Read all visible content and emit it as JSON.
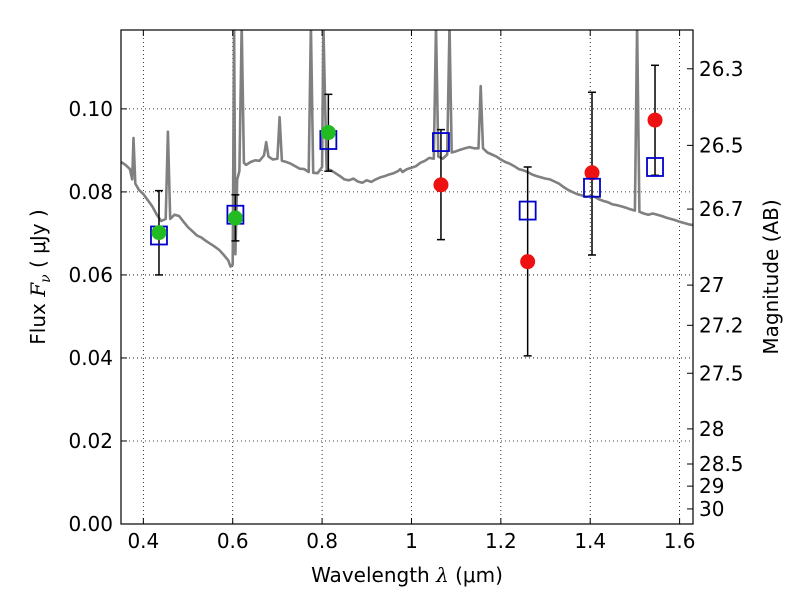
{
  "chart_data": {
    "type": "scatter",
    "xlabel": {
      "prefix": "Wavelength  ",
      "math": "λ",
      "suffix": " (μm)"
    },
    "ylabel": {
      "prefix": "Flux  ",
      "math": "F",
      "sub": "ν",
      "suffix": "  ( μJy )"
    },
    "y2label": "Magnitude (AB)",
    "xlim": [
      0.35,
      1.63
    ],
    "ylim": [
      0.0,
      0.119
    ],
    "grid": true,
    "x_ticks": [
      {
        "v": 0.4,
        "label": "0.4"
      },
      {
        "v": 0.6,
        "label": "0.6"
      },
      {
        "v": 0.8,
        "label": "0.8"
      },
      {
        "v": 1.0,
        "label": "1"
      },
      {
        "v": 1.2,
        "label": "1.2"
      },
      {
        "v": 1.4,
        "label": "1.4"
      },
      {
        "v": 1.6,
        "label": "1.6"
      }
    ],
    "y_ticks": [
      {
        "v": 0.0,
        "label": "0.00"
      },
      {
        "v": 0.02,
        "label": "0.02"
      },
      {
        "v": 0.04,
        "label": "0.04"
      },
      {
        "v": 0.06,
        "label": "0.06"
      },
      {
        "v": 0.08,
        "label": "0.08"
      },
      {
        "v": 0.1,
        "label": "0.10"
      }
    ],
    "mag_ticks": [
      {
        "v": 26.3,
        "label": "26.3"
      },
      {
        "v": 26.5,
        "label": "26.5"
      },
      {
        "v": 26.7,
        "label": "26.7"
      },
      {
        "v": 27.0,
        "label": "27"
      },
      {
        "v": 27.2,
        "label": "27.2"
      },
      {
        "v": 27.5,
        "label": "27.5"
      },
      {
        "v": 28.0,
        "label": "28"
      },
      {
        "v": 28.5,
        "label": "28.5"
      },
      {
        "v": 29.0,
        "label": "29"
      },
      {
        "v": 30.0,
        "label": "30"
      }
    ],
    "colors": {
      "model": "#808080",
      "model_points": "#0000cc",
      "detections": "#22bb22",
      "measurements": "#ee1111",
      "errorbars": "#000000"
    },
    "model_points": [
      {
        "x": 0.435,
        "y": 0.0695
      },
      {
        "x": 0.606,
        "y": 0.0745
      },
      {
        "x": 0.814,
        "y": 0.0925
      },
      {
        "x": 1.066,
        "y": 0.092
      },
      {
        "x": 1.26,
        "y": 0.0755
      },
      {
        "x": 1.404,
        "y": 0.081
      },
      {
        "x": 1.545,
        "y": 0.086
      }
    ],
    "observed_green": [
      {
        "x": 0.435,
        "y": 0.0702,
        "err_lo": 0.06,
        "err_hi": 0.0803
      },
      {
        "x": 0.606,
        "y": 0.0737,
        "err_lo": 0.0682,
        "err_hi": 0.0793
      },
      {
        "x": 0.814,
        "y": 0.0943,
        "err_lo": 0.085,
        "err_hi": 0.1035
      }
    ],
    "observed_red": [
      {
        "x": 1.066,
        "y": 0.0817,
        "err_lo": 0.0685,
        "err_hi": 0.095
      },
      {
        "x": 1.26,
        "y": 0.0632,
        "err_lo": 0.0405,
        "err_hi": 0.086
      },
      {
        "x": 1.404,
        "y": 0.0846,
        "err_lo": 0.0648,
        "err_hi": 0.104
      },
      {
        "x": 1.545,
        "y": 0.0973,
        "err_lo": 0.084,
        "err_hi": 0.1105
      }
    ],
    "model_spectrum": [
      [
        0.35,
        0.0872
      ],
      [
        0.36,
        0.0865
      ],
      [
        0.37,
        0.0855
      ],
      [
        0.375,
        0.083
      ],
      [
        0.378,
        0.093
      ],
      [
        0.382,
        0.082
      ],
      [
        0.39,
        0.0805
      ],
      [
        0.4,
        0.0795
      ],
      [
        0.41,
        0.078
      ],
      [
        0.42,
        0.0765
      ],
      [
        0.43,
        0.0745
      ],
      [
        0.44,
        0.073
      ],
      [
        0.45,
        0.0735
      ],
      [
        0.455,
        0.0945
      ],
      [
        0.46,
        0.0735
      ],
      [
        0.47,
        0.0745
      ],
      [
        0.48,
        0.0742
      ],
      [
        0.49,
        0.0728
      ],
      [
        0.5,
        0.0715
      ],
      [
        0.51,
        0.0705
      ],
      [
        0.52,
        0.0695
      ],
      [
        0.53,
        0.069
      ],
      [
        0.54,
        0.0682
      ],
      [
        0.55,
        0.0675
      ],
      [
        0.56,
        0.0668
      ],
      [
        0.57,
        0.066
      ],
      [
        0.58,
        0.0648
      ],
      [
        0.59,
        0.0635
      ],
      [
        0.595,
        0.062
      ],
      [
        0.6,
        0.0625
      ],
      [
        0.603,
        0.12
      ],
      [
        0.606,
        0.065
      ],
      [
        0.61,
        0.083
      ],
      [
        0.615,
        0.085
      ],
      [
        0.62,
        0.12
      ],
      [
        0.625,
        0.087
      ],
      [
        0.63,
        0.0865
      ],
      [
        0.64,
        0.0872
      ],
      [
        0.65,
        0.0876
      ],
      [
        0.66,
        0.0875
      ],
      [
        0.67,
        0.0888
      ],
      [
        0.675,
        0.092
      ],
      [
        0.68,
        0.0885
      ],
      [
        0.69,
        0.0878
      ],
      [
        0.7,
        0.088
      ],
      [
        0.705,
        0.098
      ],
      [
        0.71,
        0.0875
      ],
      [
        0.72,
        0.0872
      ],
      [
        0.73,
        0.0868
      ],
      [
        0.74,
        0.0862
      ],
      [
        0.75,
        0.0856
      ],
      [
        0.76,
        0.0855
      ],
      [
        0.77,
        0.0848
      ],
      [
        0.775,
        0.12
      ],
      [
        0.78,
        0.0846
      ],
      [
        0.79,
        0.0845
      ],
      [
        0.8,
        0.086
      ],
      [
        0.803,
        0.12
      ],
      [
        0.81,
        0.0855
      ],
      [
        0.82,
        0.0852
      ],
      [
        0.83,
        0.0845
      ],
      [
        0.84,
        0.0838
      ],
      [
        0.85,
        0.083
      ],
      [
        0.86,
        0.0828
      ],
      [
        0.87,
        0.0832
      ],
      [
        0.88,
        0.0825
      ],
      [
        0.89,
        0.0822
      ],
      [
        0.9,
        0.0828
      ],
      [
        0.91,
        0.0824
      ],
      [
        0.92,
        0.083
      ],
      [
        0.93,
        0.0835
      ],
      [
        0.94,
        0.0838
      ],
      [
        0.95,
        0.0842
      ],
      [
        0.96,
        0.0845
      ],
      [
        0.97,
        0.085
      ],
      [
        0.975,
        0.0855
      ],
      [
        0.98,
        0.0848
      ],
      [
        0.99,
        0.0855
      ],
      [
        1.0,
        0.0858
      ],
      [
        1.01,
        0.0862
      ],
      [
        1.02,
        0.087
      ],
      [
        1.03,
        0.0875
      ],
      [
        1.04,
        0.0882
      ],
      [
        1.05,
        0.088
      ],
      [
        1.055,
        0.12
      ],
      [
        1.06,
        0.0885
      ],
      [
        1.07,
        0.088
      ],
      [
        1.08,
        0.089
      ],
      [
        1.085,
        0.12
      ],
      [
        1.09,
        0.0895
      ],
      [
        1.1,
        0.0898
      ],
      [
        1.11,
        0.0902
      ],
      [
        1.12,
        0.0905
      ],
      [
        1.13,
        0.0908
      ],
      [
        1.14,
        0.0905
      ],
      [
        1.15,
        0.0905
      ],
      [
        1.155,
        0.1055
      ],
      [
        1.16,
        0.0905
      ],
      [
        1.17,
        0.0895
      ],
      [
        1.18,
        0.089
      ],
      [
        1.19,
        0.0885
      ],
      [
        1.2,
        0.0878
      ],
      [
        1.21,
        0.0872
      ],
      [
        1.22,
        0.0868
      ],
      [
        1.23,
        0.0862
      ],
      [
        1.24,
        0.0855
      ],
      [
        1.25,
        0.0852
      ],
      [
        1.26,
        0.0848
      ],
      [
        1.27,
        0.0842
      ],
      [
        1.28,
        0.0838
      ],
      [
        1.29,
        0.0835
      ],
      [
        1.3,
        0.0832
      ],
      [
        1.31,
        0.083
      ],
      [
        1.32,
        0.0825
      ],
      [
        1.33,
        0.082
      ],
      [
        1.34,
        0.0812
      ],
      [
        1.35,
        0.0805
      ],
      [
        1.36,
        0.08
      ],
      [
        1.37,
        0.0795
      ],
      [
        1.38,
        0.0792
      ],
      [
        1.39,
        0.0788
      ],
      [
        1.4,
        0.079
      ],
      [
        1.41,
        0.0788
      ],
      [
        1.42,
        0.0782
      ],
      [
        1.43,
        0.0778
      ],
      [
        1.44,
        0.0775
      ],
      [
        1.45,
        0.077
      ],
      [
        1.46,
        0.0768
      ],
      [
        1.47,
        0.0765
      ],
      [
        1.48,
        0.0762
      ],
      [
        1.49,
        0.0758
      ],
      [
        1.5,
        0.0755
      ],
      [
        1.505,
        0.12
      ],
      [
        1.51,
        0.0752
      ],
      [
        1.52,
        0.0748
      ],
      [
        1.53,
        0.0745
      ],
      [
        1.54,
        0.0748
      ],
      [
        1.55,
        0.0745
      ],
      [
        1.56,
        0.0742
      ],
      [
        1.57,
        0.0738
      ],
      [
        1.58,
        0.0735
      ],
      [
        1.59,
        0.0732
      ],
      [
        1.6,
        0.0728
      ],
      [
        1.61,
        0.0725
      ],
      [
        1.62,
        0.0722
      ],
      [
        1.63,
        0.072
      ]
    ]
  }
}
